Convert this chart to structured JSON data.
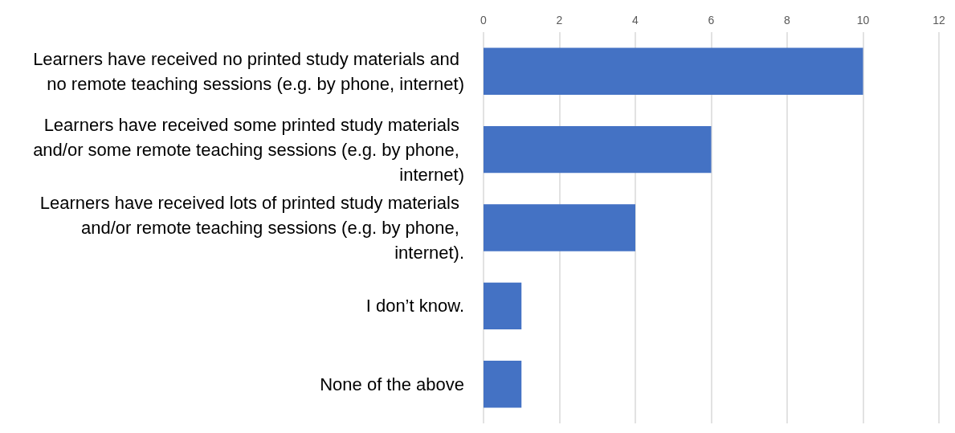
{
  "chart_data": {
    "type": "bar",
    "orientation": "horizontal",
    "categories": [
      "Learners have received no printed study materials and no remote teaching sessions (e.g. by phone, internet)",
      "Learners have received some printed study materials and/or some remote teaching sessions (e.g. by phone, internet)",
      "Learners have received lots of printed study materials and/or remote teaching sessions (e.g. by phone, internet).",
      "I don’t know.",
      "None of the above"
    ],
    "values": [
      10,
      6,
      4,
      1,
      1
    ],
    "color": "#4472c4",
    "xlim": [
      0,
      12
    ],
    "xticks": [
      0,
      2,
      4,
      6,
      8,
      10,
      12
    ],
    "grid": "x"
  }
}
